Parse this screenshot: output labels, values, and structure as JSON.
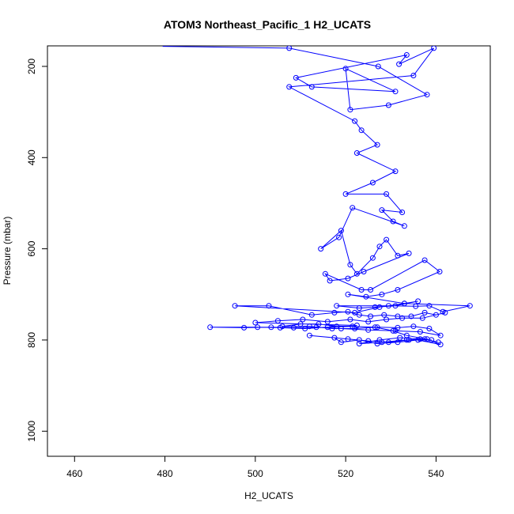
{
  "chart_data": {
    "type": "line",
    "title": "ATOM3 Northeast_Pacific_1 H2_UCATS",
    "xlabel": "H2_UCATS",
    "ylabel": "Pressure (mbar)",
    "xlim": [
      454,
      552
    ],
    "ylim": [
      1055,
      155
    ],
    "y_axis_inverted": true,
    "x_ticks": [
      "460",
      "480",
      "500",
      "520",
      "540"
    ],
    "y_ticks": [
      "200",
      "400",
      "600",
      "800",
      "1000"
    ],
    "grid": false,
    "legend": "none",
    "series_color": "#0000ff",
    "marker": "open-circle",
    "series": [
      {
        "x": [
          507.5,
          527.2,
          538.0,
          529.5,
          521.0,
          520.0,
          531.0,
          512.5,
          509.0,
          533.5,
          531.8,
          539.5,
          535.0,
          507.5,
          522.0,
          523.5,
          527.0,
          522.5,
          531.0,
          526.0,
          520.0,
          529.0,
          532.5,
          528.0,
          530.5,
          533.0,
          521.5,
          518.5,
          514.5,
          519.0,
          521.0,
          522.5,
          526.0,
          527.5,
          529.0,
          531.5,
          534.0,
          524.0,
          520.5,
          516.5,
          515.5,
          523.5,
          525.5,
          537.5,
          540.8,
          531.5,
          528.0,
          524.5,
          520.5,
          533.0,
          536.0,
          531.0,
          526.5,
          523.0,
          518.0,
          529.5,
          535.5,
          538.5,
          541.5,
          547.5,
          533.0,
          527.5,
          522.0,
          495.5,
          503.0,
          512.5,
          517.5,
          520.5,
          523.0,
          525.5,
          528.5,
          531.5,
          534.5,
          537.5,
          540.0,
          542.0,
          537.0,
          532.5,
          529.0,
          525.0,
          521.0,
          516.0,
          510.5,
          505.0,
          500.0,
          522.5,
          518.0,
          514.0,
          510.0,
          506.0,
          512.0,
          517.0,
          522.0,
          527.0,
          531.5,
          535.0,
          538.5,
          541.0,
          536.5,
          531.0,
          525.0,
          519.0,
          513.5,
          508.5,
          503.5,
          497.5,
          490.0,
          500.5,
          505.5,
          511.0,
          516.0,
          521.5,
          526.5,
          530.5,
          533.5,
          538.0,
          541.0,
          536.0,
          531.5,
          527.0,
          523.0,
          519.0,
          517.5,
          512.0,
          520.5,
          525.0,
          529.5,
          534.0,
          539.0,
          536.5,
          532.0,
          527.5,
          523.0,
          528.0,
          533.5,
          537.5,
          540.5
        ],
        "y": [
          160,
          200,
          262,
          285,
          295,
          205,
          255,
          245,
          225,
          175,
          195,
          160,
          220,
          245,
          320,
          340,
          372,
          390,
          430,
          455,
          480,
          480,
          520,
          515,
          540,
          550,
          510,
          575,
          600,
          560,
          635,
          655,
          620,
          595,
          580,
          615,
          610,
          650,
          665,
          670,
          655,
          690,
          690,
          625,
          650,
          690,
          700,
          705,
          700,
          720,
          715,
          725,
          728,
          730,
          725,
          725,
          726,
          725,
          738,
          725,
          720,
          728,
          740,
          725,
          725,
          745,
          740,
          738,
          745,
          748,
          745,
          748,
          748,
          740,
          745,
          740,
          752,
          752,
          755,
          760,
          755,
          760,
          755,
          758,
          762,
          768,
          770,
          765,
          765,
          770,
          770,
          775,
          775,
          772,
          773,
          770,
          775,
          790,
          782,
          780,
          778,
          775,
          772,
          773,
          772,
          773,
          772,
          772,
          773,
          775,
          772,
          770,
          772,
          780,
          790,
          798,
          810,
          800,
          805,
          808,
          800,
          805,
          795,
          790,
          798,
          802,
          805,
          800,
          800,
          798,
          795,
          800,
          808,
          805,
          800,
          798,
          805
        ]
      }
    ]
  }
}
